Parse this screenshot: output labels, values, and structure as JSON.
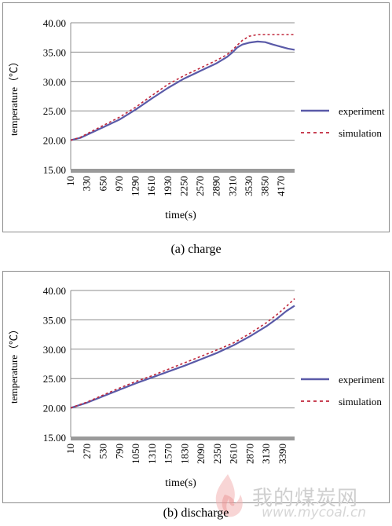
{
  "chart_data": [
    {
      "type": "line",
      "ylabel": "temperature（℃）",
      "xlabel": "time(s)",
      "ylim": [
        15,
        40
      ],
      "yticks": [
        "15.00",
        "20.00",
        "25.00",
        "30.00",
        "35.00",
        "40.00"
      ],
      "xlim": [
        10,
        4430
      ],
      "xticks": [
        "10",
        "330",
        "650",
        "970",
        "1290",
        "1610",
        "1930",
        "2250",
        "2570",
        "2890",
        "3210",
        "3530",
        "3850",
        "4170"
      ],
      "grid": "horizontal",
      "legend_position": "right",
      "caption": "(a) charge",
      "series": [
        {
          "name": "experiment",
          "style": "solid",
          "color": "#5a5aa8",
          "x": [
            10,
            200,
            400,
            650,
            970,
            1290,
            1610,
            1930,
            2250,
            2570,
            2890,
            3100,
            3210,
            3300,
            3400,
            3530,
            3700,
            3850,
            4000,
            4170,
            4300,
            4430
          ],
          "y": [
            20.0,
            20.4,
            21.2,
            22.2,
            23.5,
            25.2,
            27.1,
            28.9,
            30.5,
            31.8,
            33.1,
            34.2,
            35.0,
            35.8,
            36.3,
            36.6,
            36.8,
            36.7,
            36.3,
            35.9,
            35.6,
            35.4
          ]
        },
        {
          "name": "simulation",
          "style": "dashed",
          "color": "#c0283c",
          "x": [
            10,
            200,
            400,
            650,
            970,
            1290,
            1610,
            1930,
            2250,
            2570,
            2890,
            3100,
            3210,
            3300,
            3400,
            3530,
            3700,
            3850,
            4000,
            4170,
            4300,
            4430
          ],
          "y": [
            20.0,
            20.5,
            21.4,
            22.5,
            23.9,
            25.6,
            27.6,
            29.5,
            31.0,
            32.3,
            33.6,
            34.6,
            35.4,
            36.2,
            37.0,
            37.7,
            38.0,
            38.0,
            38.0,
            38.0,
            38.0,
            38.0
          ]
        }
      ]
    },
    {
      "type": "line",
      "ylabel": "temperature（℃）",
      "xlabel": "time(s)",
      "ylim": [
        15,
        40
      ],
      "yticks": [
        "15.00",
        "20.00",
        "25.00",
        "30.00",
        "35.00",
        "40.00"
      ],
      "xlim": [
        10,
        3580
      ],
      "xticks": [
        "10",
        "270",
        "530",
        "790",
        "1050",
        "1310",
        "1570",
        "1830",
        "2090",
        "2350",
        "2610",
        "2870",
        "3130",
        "3390"
      ],
      "grid": "horizontal",
      "legend_position": "right",
      "caption": "(b) discharge",
      "series": [
        {
          "name": "experiment",
          "style": "solid",
          "color": "#5a5aa8",
          "x": [
            10,
            270,
            530,
            790,
            1050,
            1310,
            1570,
            1830,
            2090,
            2350,
            2610,
            2870,
            3130,
            3300,
            3450,
            3580
          ],
          "y": [
            20.0,
            20.9,
            22.0,
            23.1,
            24.2,
            25.2,
            26.2,
            27.2,
            28.3,
            29.4,
            30.7,
            32.2,
            33.9,
            35.2,
            36.5,
            37.4
          ]
        },
        {
          "name": "simulation",
          "style": "dashed",
          "color": "#c0283c",
          "x": [
            10,
            270,
            530,
            790,
            1050,
            1310,
            1570,
            1830,
            2090,
            2350,
            2610,
            2870,
            3130,
            3300,
            3450,
            3580
          ],
          "y": [
            20.0,
            21.0,
            22.2,
            23.4,
            24.5,
            25.5,
            26.6,
            27.7,
            28.8,
            29.9,
            31.1,
            32.7,
            34.5,
            35.9,
            37.3,
            38.6
          ]
        }
      ]
    }
  ],
  "watermark": {
    "text": "我的煤炭网",
    "url": "www.mycoal.cn",
    "icon": "flame-logo-icon"
  }
}
